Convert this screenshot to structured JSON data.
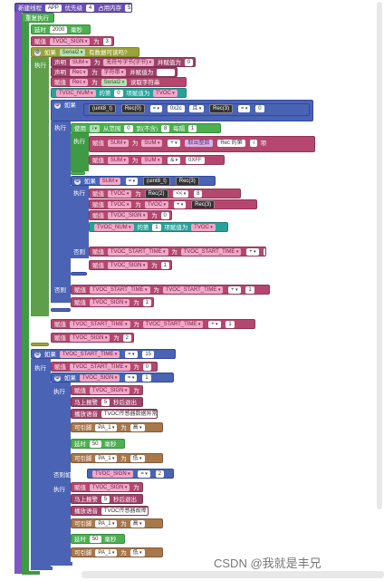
{
  "thread": {
    "title": "新建线程",
    "app": "APP",
    "priority_label": "优先级",
    "priority": "4",
    "mem_label": "占用内存",
    "mem": "512"
  },
  "loop": "重复执行",
  "delay": {
    "label": "延时",
    "value": "2000",
    "unit": "毫秒"
  },
  "assign_word": "赋值",
  "to_word": "为",
  "set_word": "设为",
  "declare": "声明",
  "if_word": "如果",
  "else_word": "否则",
  "elseif_word": "否则如果",
  "exec": "执行",
  "var_tvoc_sign": "TVOC_SIGN",
  "var_tvoc_num": "TVOC_NUM",
  "var_tvoc": "TVOC",
  "var_tvoc_start": "TVOC_START_TIME",
  "var_sum": "SUM",
  "var_rec": "Rec",
  "val_3": "3",
  "serial2": "Serial2",
  "serial_avail": "有数据可读吗?",
  "decl_sum": {
    "type": "无符号字节(字节)",
    "and_assign": "并赋值为",
    "value": "0"
  },
  "decl_rec": {
    "type": "字符串",
    "and_assign": "并赋值为",
    "value": ""
  },
  "rec_read": {
    "serial": "Serial2",
    "op": "读取字符串"
  },
  "tvoc_num_line": {
    "label": "的第",
    "idx": "0",
    "tail": "项赋值为"
  },
  "cast_u8": "(uint8_t)",
  "rec0": "Rec(0)",
  "rec1": "Rec(1)",
  "rec2": "Rec(2)",
  "rec3": "Rec(3)",
  "rec4": "Rec(4)",
  "hex_16": "0x2c",
  "hex_ff": "0XFF",
  "and_op": "且",
  "eq_op": "=",
  "cmp_eq": "=",
  "for_loop": {
    "use": "使用",
    "i": "i",
    "from": "从范围",
    "start": "0",
    "to": "到(不含)",
    "end": "8",
    "step": "每隔",
    "step_val": "1"
  },
  "sum_expr": {
    "plus": "+",
    "rec_label": "取出整数",
    "rec_hint": "Rec 的第",
    "item": "项"
  },
  "and_ff": "&",
  "shift": "<<",
  "shift8": "8",
  "tvoc_val_0": "0",
  "tvoc_val_1": "1",
  "sign_1": "1",
  "sign_2": "2",
  "start_time": "TVOC_START_TIME",
  "millis_plus": "+",
  "num_1": "1",
  "num_15": "15",
  "num_0": "0",
  "output": {
    "pin": "高",
    "pin_low": "低",
    "label": "可引脚",
    "pin_name": "PA_1"
  },
  "sound1": {
    "label": "马上报警",
    "value": "5",
    "tail": "秒后退出"
  },
  "sound2": {
    "label": "播放语音",
    "text": "TVOC传感器数据异常"
  },
  "sound3": {
    "label": "播放语音",
    "text": "TVOC传感器故障"
  },
  "delay50": {
    "label": "延时",
    "value": "50",
    "unit": "毫秒"
  },
  "watermark": "CSDN @我就是丰兄"
}
